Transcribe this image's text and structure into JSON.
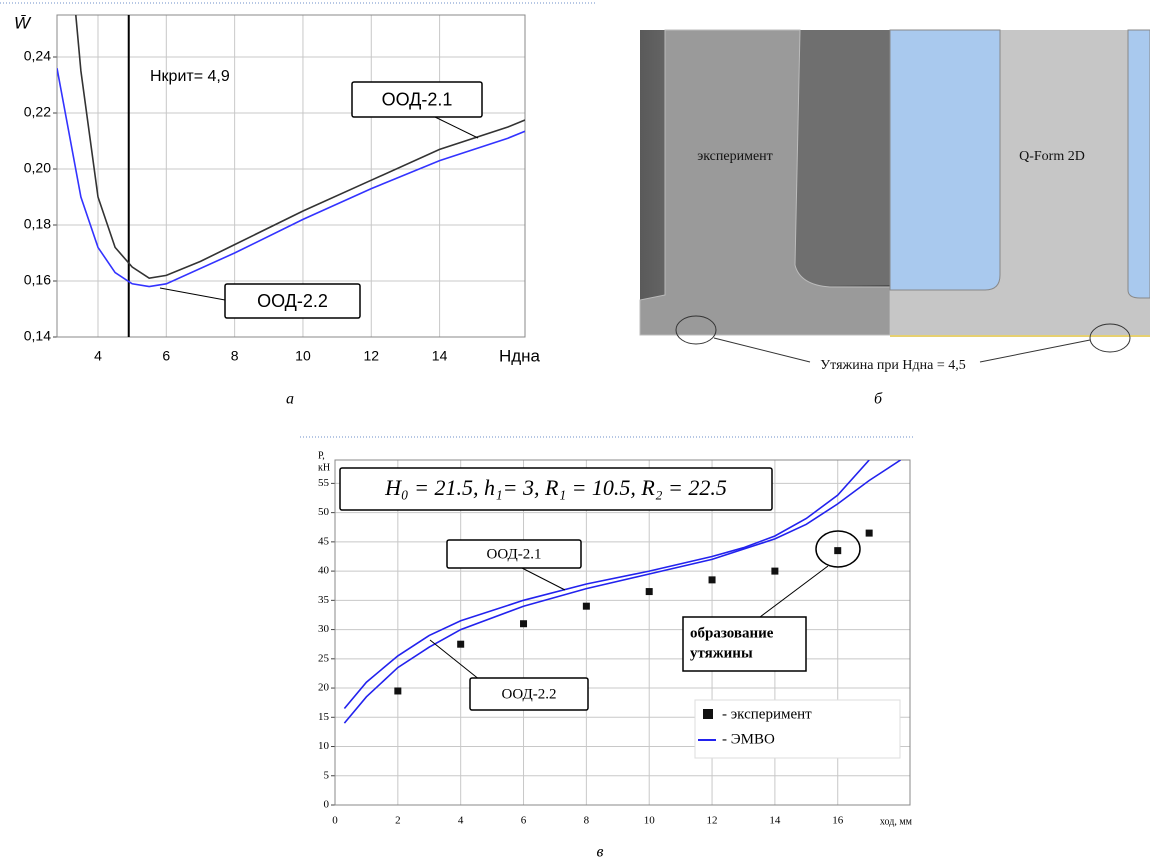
{
  "chart_data": [
    {
      "type": "line",
      "y_label": "W̄",
      "x_label": "Ндна",
      "xlim": [
        2.8,
        16.5
      ],
      "ylim": [
        0.14,
        0.255
      ],
      "xticks": [
        4,
        6,
        8,
        10,
        12,
        14
      ],
      "yticks": [
        {
          "value": 0.14,
          "label": "0,14"
        },
        {
          "value": 0.16,
          "label": "0,16"
        },
        {
          "value": 0.18,
          "label": "0,18"
        },
        {
          "value": 0.2,
          "label": "0,20"
        },
        {
          "value": 0.22,
          "label": "0,22"
        },
        {
          "value": 0.24,
          "label": "0,24"
        }
      ],
      "grid": true,
      "vline": 4.9,
      "annotation": "Нкрит= 4,9",
      "series": [
        {
          "name": "ООД-2.1",
          "color": "#333333",
          "style": "line",
          "x": [
            3.35,
            3.5,
            4,
            4.5,
            5,
            5.5,
            6,
            7,
            8,
            10,
            12,
            14,
            16,
            16.5
          ],
          "values": [
            0.255,
            0.235,
            0.19,
            0.172,
            0.165,
            0.161,
            0.162,
            0.167,
            0.173,
            0.185,
            0.196,
            0.207,
            0.215,
            0.2175
          ]
        },
        {
          "name": "ООД-2.2",
          "color": "#3333ff",
          "style": "line",
          "x": [
            2.8,
            3.5,
            4,
            4.5,
            5,
            5.5,
            6,
            8,
            10,
            12,
            14,
            16,
            16.5
          ],
          "values": [
            0.236,
            0.19,
            0.172,
            0.163,
            0.159,
            0.158,
            0.159,
            0.17,
            0.182,
            0.193,
            0.203,
            0.211,
            0.2135
          ]
        }
      ]
    },
    {
      "type": "line",
      "y_label": [
        "Р,",
        "кН"
      ],
      "x_label": "ход, мм",
      "xlim": [
        0,
        18.3
      ],
      "ylim": [
        0,
        59
      ],
      "xticks": [
        0,
        2,
        4,
        6,
        8,
        10,
        12,
        14,
        16
      ],
      "yticks": [
        0,
        5,
        10,
        15,
        20,
        25,
        30,
        35,
        40,
        45,
        50,
        55
      ],
      "grid": true,
      "annotation": "H₀ = 21.5, h₁= 3, R₁ = 10.5, R₂ = 22.5",
      "callout": [
        "образование",
        "утяжины"
      ],
      "legend_line_label": "- ЭМВО",
      "series": [
        {
          "name": "ООД-2.1",
          "color": "#2222ee",
          "style": "line",
          "x": [
            0.3,
            1,
            2,
            3,
            4,
            6,
            8,
            10,
            12,
            13,
            14,
            15,
            16,
            17
          ],
          "values": [
            16.5,
            21,
            25.5,
            29,
            31.5,
            35,
            37.8,
            40,
            42.5,
            44,
            46,
            49,
            53,
            59
          ]
        },
        {
          "name": "ООД-2.2",
          "color": "#2222ee",
          "style": "line",
          "x": [
            0.3,
            1,
            2,
            3,
            4,
            6,
            8,
            10,
            12,
            14,
            15,
            16,
            17,
            18
          ],
          "values": [
            14,
            18.5,
            23.5,
            27,
            30,
            34,
            37,
            39.5,
            42,
            45.5,
            48,
            51.5,
            55.5,
            59
          ]
        },
        {
          "name": "- эксперимент",
          "color": "#111111",
          "style": "points",
          "x": [
            2,
            4,
            6,
            8,
            10,
            12,
            14,
            16,
            17
          ],
          "values": [
            19.5,
            27.5,
            31,
            34,
            36.5,
            38.5,
            40,
            43.5,
            46.5
          ]
        }
      ]
    }
  ],
  "photo": {
    "left_label": "эксперимент",
    "right_label": "Q-Form 2D",
    "bottom_label": "Утяжина при Ндна = 4,5"
  },
  "captions": [
    "а",
    "б",
    "в"
  ]
}
